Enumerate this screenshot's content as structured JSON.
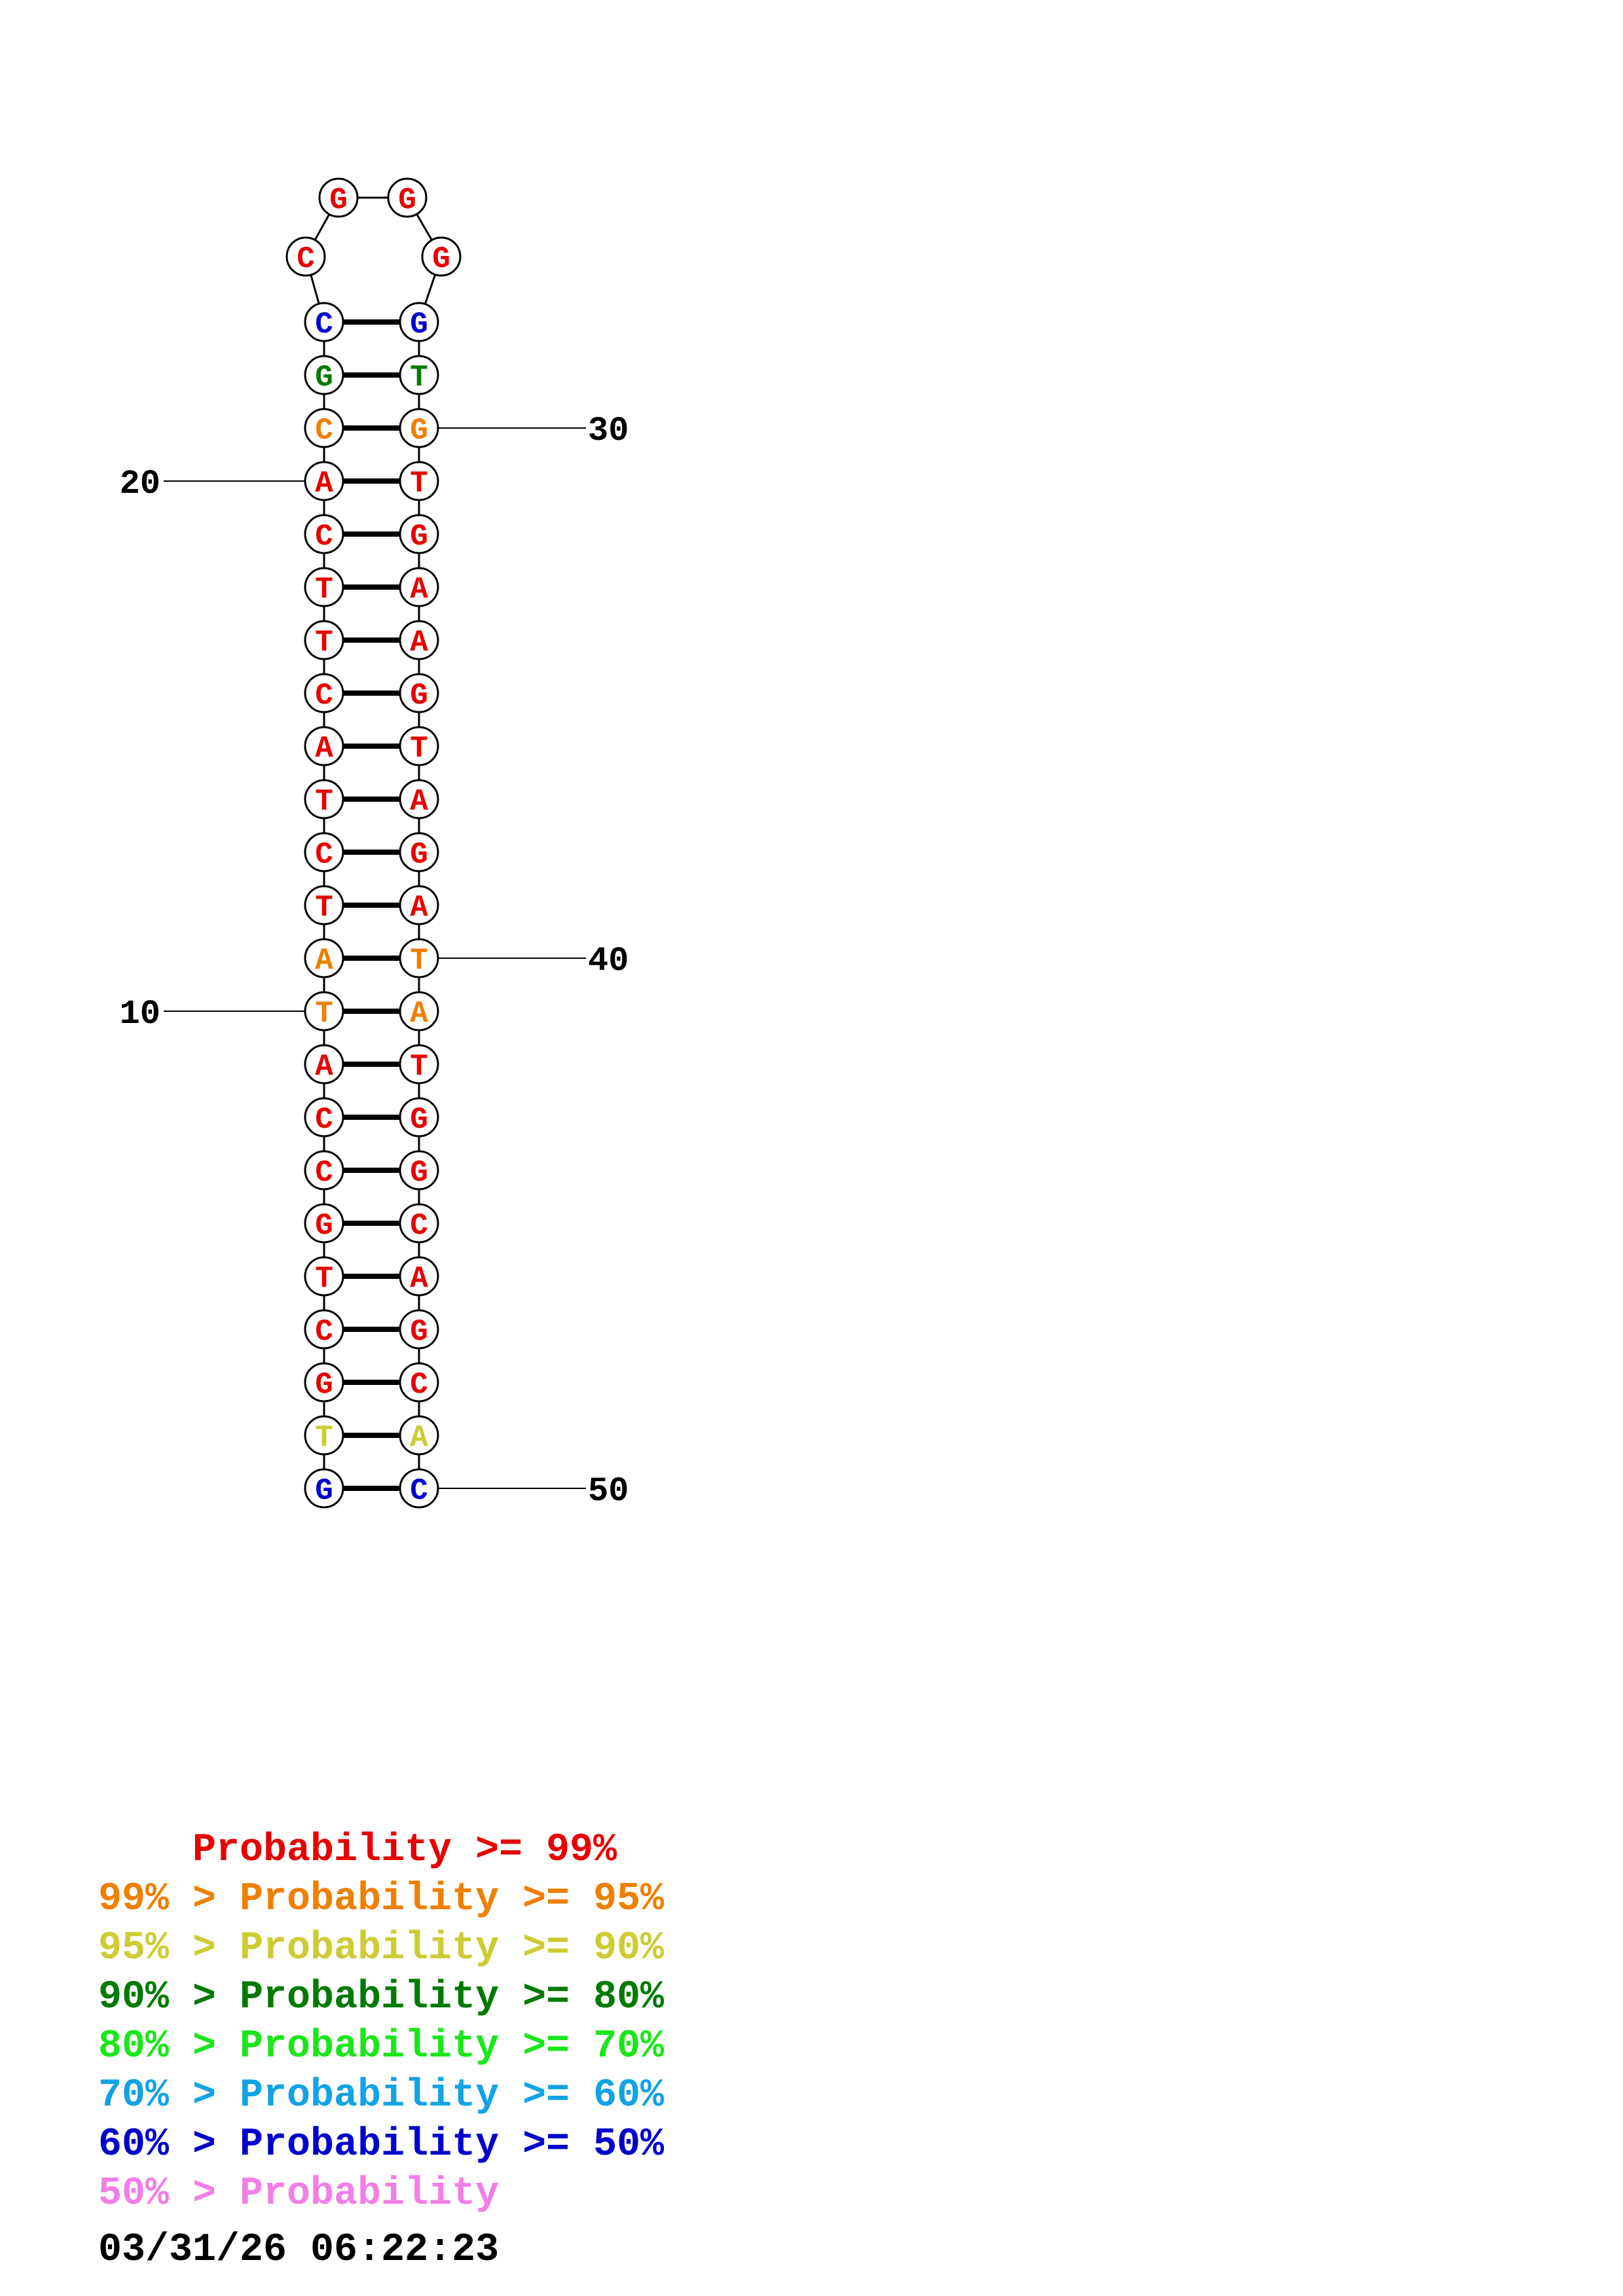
{
  "colors": {
    "p99": "#e60000",
    "p95": "#ee7f00",
    "p90": "#cccc33",
    "p80": "#007a00",
    "p70": "#1ae61a",
    "p60": "#12a2e6",
    "p50": "#0000cc",
    "plow": "#f27ee6"
  },
  "sequence": [
    {
      "n": 1,
      "base": "G",
      "cls": "p50"
    },
    {
      "n": 2,
      "base": "T",
      "cls": "p90"
    },
    {
      "n": 3,
      "base": "G",
      "cls": "p99"
    },
    {
      "n": 4,
      "base": "C",
      "cls": "p99"
    },
    {
      "n": 5,
      "base": "T",
      "cls": "p99"
    },
    {
      "n": 6,
      "base": "G",
      "cls": "p99"
    },
    {
      "n": 7,
      "base": "C",
      "cls": "p99"
    },
    {
      "n": 8,
      "base": "C",
      "cls": "p99"
    },
    {
      "n": 9,
      "base": "A",
      "cls": "p99"
    },
    {
      "n": 10,
      "base": "T",
      "cls": "p95"
    },
    {
      "n": 11,
      "base": "A",
      "cls": "p95"
    },
    {
      "n": 12,
      "base": "T",
      "cls": "p99"
    },
    {
      "n": 13,
      "base": "C",
      "cls": "p99"
    },
    {
      "n": 14,
      "base": "T",
      "cls": "p99"
    },
    {
      "n": 15,
      "base": "A",
      "cls": "p99"
    },
    {
      "n": 16,
      "base": "C",
      "cls": "p99"
    },
    {
      "n": 17,
      "base": "T",
      "cls": "p99"
    },
    {
      "n": 18,
      "base": "T",
      "cls": "p99"
    },
    {
      "n": 19,
      "base": "C",
      "cls": "p99"
    },
    {
      "n": 20,
      "base": "A",
      "cls": "p99"
    },
    {
      "n": 21,
      "base": "C",
      "cls": "p95"
    },
    {
      "n": 22,
      "base": "G",
      "cls": "p80"
    },
    {
      "n": 23,
      "base": "C",
      "cls": "p50"
    },
    {
      "n": 24,
      "base": "C",
      "cls": "p99"
    },
    {
      "n": 25,
      "base": "G",
      "cls": "p99"
    },
    {
      "n": 26,
      "base": "G",
      "cls": "p99"
    },
    {
      "n": 27,
      "base": "G",
      "cls": "p99"
    },
    {
      "n": 28,
      "base": "G",
      "cls": "p50"
    },
    {
      "n": 29,
      "base": "T",
      "cls": "p80"
    },
    {
      "n": 30,
      "base": "G",
      "cls": "p95"
    },
    {
      "n": 31,
      "base": "T",
      "cls": "p99"
    },
    {
      "n": 32,
      "base": "G",
      "cls": "p99"
    },
    {
      "n": 33,
      "base": "A",
      "cls": "p99"
    },
    {
      "n": 34,
      "base": "A",
      "cls": "p99"
    },
    {
      "n": 35,
      "base": "G",
      "cls": "p99"
    },
    {
      "n": 36,
      "base": "T",
      "cls": "p99"
    },
    {
      "n": 37,
      "base": "A",
      "cls": "p99"
    },
    {
      "n": 38,
      "base": "G",
      "cls": "p99"
    },
    {
      "n": 39,
      "base": "A",
      "cls": "p99"
    },
    {
      "n": 40,
      "base": "T",
      "cls": "p95"
    },
    {
      "n": 41,
      "base": "A",
      "cls": "p95"
    },
    {
      "n": 42,
      "base": "T",
      "cls": "p99"
    },
    {
      "n": 43,
      "base": "G",
      "cls": "p99"
    },
    {
      "n": 44,
      "base": "G",
      "cls": "p99"
    },
    {
      "n": 45,
      "base": "C",
      "cls": "p99"
    },
    {
      "n": 46,
      "base": "A",
      "cls": "p99"
    },
    {
      "n": 47,
      "base": "G",
      "cls": "p99"
    },
    {
      "n": 48,
      "base": "C",
      "cls": "p99"
    },
    {
      "n": 49,
      "base": "A",
      "cls": "p90"
    },
    {
      "n": 50,
      "base": "C",
      "cls": "p50"
    }
  ],
  "pairs": [
    [
      1,
      50
    ],
    [
      2,
      49
    ],
    [
      3,
      48
    ],
    [
      4,
      47
    ],
    [
      5,
      46
    ],
    [
      6,
      45
    ],
    [
      7,
      44
    ],
    [
      8,
      43
    ],
    [
      9,
      42
    ],
    [
      10,
      41
    ],
    [
      11,
      40
    ],
    [
      12,
      39
    ],
    [
      13,
      38
    ],
    [
      14,
      37
    ],
    [
      15,
      36
    ],
    [
      16,
      35
    ],
    [
      17,
      34
    ],
    [
      18,
      33
    ],
    [
      19,
      32
    ],
    [
      20,
      31
    ],
    [
      21,
      30
    ],
    [
      22,
      29
    ],
    [
      23,
      28
    ]
  ],
  "numbering": [
    "10",
    "20",
    "30",
    "40",
    "50"
  ],
  "legend": [
    {
      "cls": "p99",
      "text": "    Probability >= 99%"
    },
    {
      "cls": "p95",
      "text": "99% > Probability >= 95%"
    },
    {
      "cls": "p90",
      "text": "95% > Probability >= 90%"
    },
    {
      "cls": "p80",
      "text": "90% > Probability >= 80%"
    },
    {
      "cls": "p70",
      "text": "80% > Probability >= 70%"
    },
    {
      "cls": "p60",
      "text": "70% > Probability >= 60%"
    },
    {
      "cls": "p50",
      "text": "60% > Probability >= 50%"
    },
    {
      "cls": "plow",
      "text": "50% > Probability"
    }
  ],
  "timestamp": "03/31/26 06:22:23"
}
